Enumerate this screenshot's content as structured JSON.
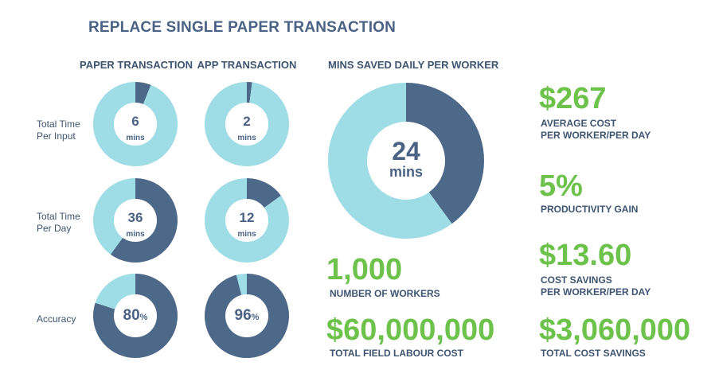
{
  "title": "REPLACE SINGLE PAPER TRANSACTION",
  "colors": {
    "light": "#9fdde6",
    "dark": "#4d6989",
    "white": "#ffffff",
    "green": "#6cc24a",
    "text": "#3e5470"
  },
  "columns": {
    "paper": "PAPER TRANSACTION",
    "app": "APP TRANSACTION",
    "mins_saved": "MINS SAVED DAILY PER WORKER"
  },
  "rows": {
    "input": "Total Time\nPer Input",
    "day": "Total Time\nPer Day",
    "accuracy": "Accuracy"
  },
  "chart_data": [
    {
      "type": "pie",
      "id": "paper-input",
      "values": [
        6,
        94
      ],
      "center_value": "6",
      "center_unit": "mins"
    },
    {
      "type": "pie",
      "id": "app-input",
      "values": [
        2,
        98
      ],
      "center_value": "2",
      "center_unit": "mins"
    },
    {
      "type": "pie",
      "id": "paper-day",
      "values": [
        60,
        40
      ],
      "center_value": "36",
      "center_unit": "mins"
    },
    {
      "type": "pie",
      "id": "app-day",
      "values": [
        15,
        85
      ],
      "center_value": "12",
      "center_unit": "mins"
    },
    {
      "type": "pie",
      "id": "paper-accuracy",
      "values": [
        80,
        20
      ],
      "center_value": "80",
      "center_unit": "%"
    },
    {
      "type": "pie",
      "id": "app-accuracy",
      "values": [
        96,
        4
      ],
      "center_value": "96",
      "center_unit": "%"
    },
    {
      "type": "pie",
      "id": "mins-saved",
      "values": [
        40,
        60
      ],
      "center_value": "24",
      "center_unit": "mins"
    }
  ],
  "stats": [
    {
      "value": "$267",
      "caption": "AVERAGE COST\nPER WORKER/PER DAY"
    },
    {
      "value": "5%",
      "caption": "PRODUCTIVITY GAIN"
    },
    {
      "value": "$13.60",
      "caption": "COST SAVINGS\nPER WORKER/PER DAY"
    },
    {
      "value": "$3,060,000",
      "caption": "TOTAL COST SAVINGS"
    },
    {
      "value": "1,000",
      "caption": "NUMBER OF WORKERS"
    },
    {
      "value": "$60,000,000",
      "caption": "TOTAL FIELD LABOUR COST"
    }
  ]
}
